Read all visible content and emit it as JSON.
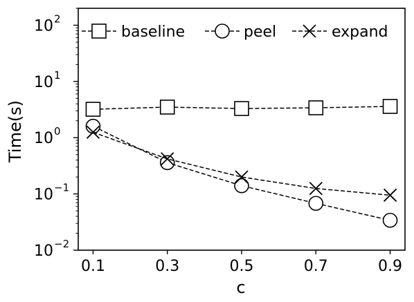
{
  "chart_data": {
    "type": "line",
    "xlabel": "c",
    "ylabel": "Time(s)",
    "yscale": "log",
    "x": [
      0.1,
      0.3,
      0.5,
      0.7,
      0.9
    ],
    "x_tick_labels": [
      "0.1",
      "0.3",
      "0.5",
      "0.7",
      "0.9"
    ],
    "ylim": [
      0.01,
      200
    ],
    "y_ticks": [
      {
        "value": 0.01,
        "base": "10",
        "exp": "−2"
      },
      {
        "value": 0.1,
        "base": "10",
        "exp": "−1"
      },
      {
        "value": 1,
        "base": "10",
        "exp": "0"
      },
      {
        "value": 10,
        "base": "10",
        "exp": "1"
      },
      {
        "value": 100,
        "base": "10",
        "exp": "2"
      }
    ],
    "legend_position": "top",
    "grid": false,
    "series": [
      {
        "name": "baseline",
        "marker": "square",
        "line": "dashed",
        "values": [
          3.2,
          3.5,
          3.3,
          3.4,
          3.6
        ]
      },
      {
        "name": "peel",
        "marker": "circle",
        "line": "dashed",
        "values": [
          1.6,
          0.36,
          0.14,
          0.068,
          0.034
        ]
      },
      {
        "name": "expand",
        "marker": "x",
        "line": "dashed",
        "values": [
          1.25,
          0.42,
          0.2,
          0.125,
          0.095
        ]
      }
    ]
  }
}
